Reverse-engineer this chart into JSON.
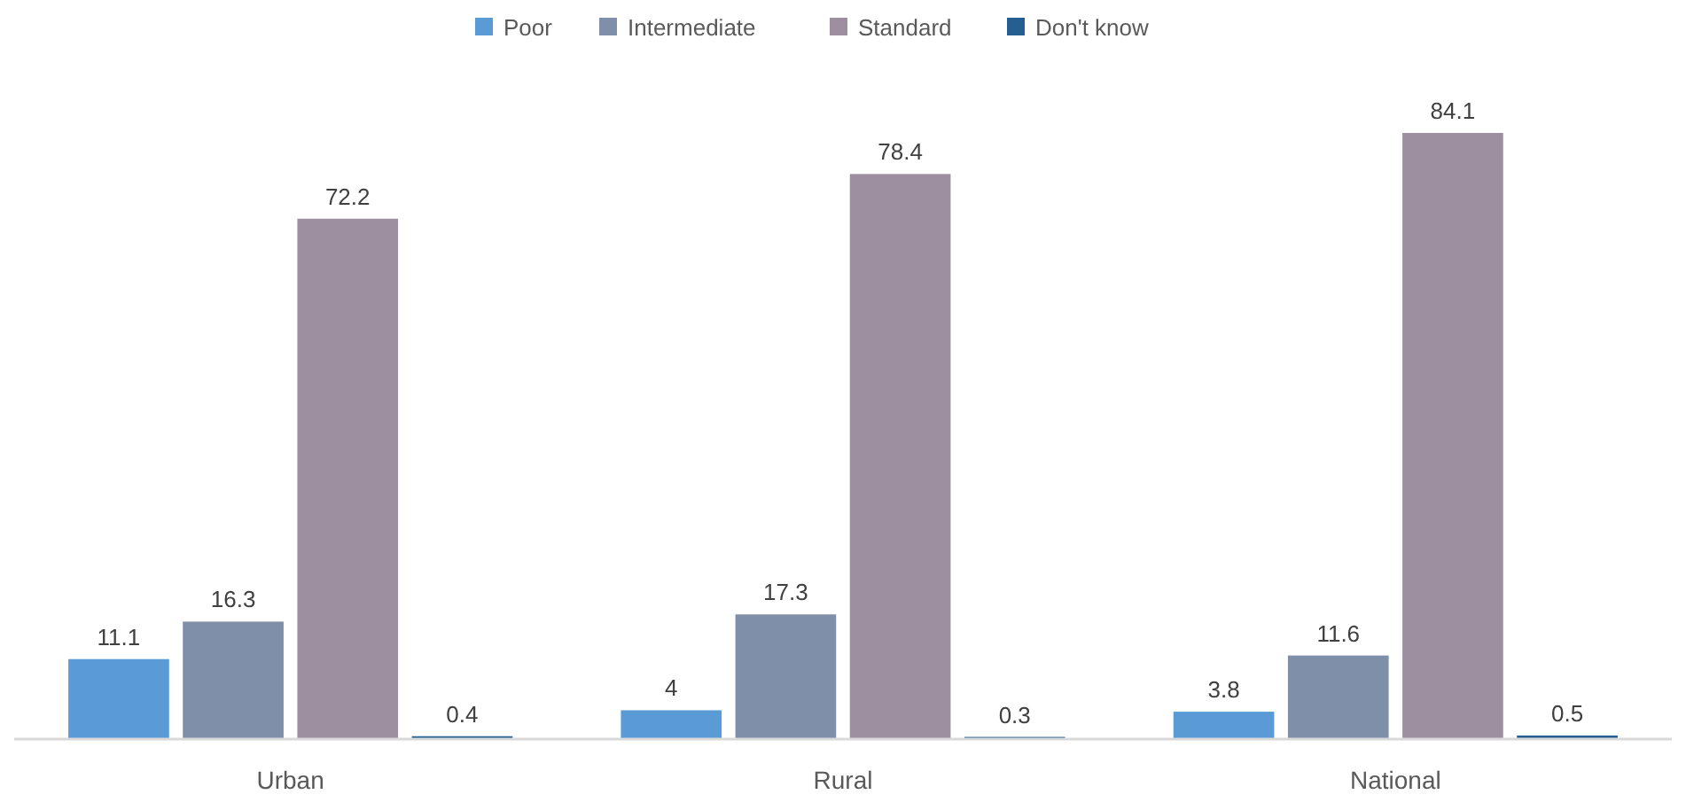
{
  "chart_data": {
    "type": "bar",
    "categories": [
      "Urban",
      "Rural",
      "National"
    ],
    "data_labels": true,
    "legend": "top",
    "series": [
      {
        "name": "Poor",
        "color": "#5b9bd5",
        "values": [
          11.1,
          4,
          3.8
        ]
      },
      {
        "name": "Intermediate",
        "color": "#7f8fa9",
        "values": [
          16.3,
          17.3,
          11.6
        ]
      },
      {
        "name": "Standard",
        "color": "#9e8fa0",
        "values": [
          72.2,
          78.4,
          84.1
        ]
      },
      {
        "name": "Don't know",
        "color": "#255e91",
        "values": [
          0.4,
          0.3,
          0.5
        ]
      }
    ]
  }
}
